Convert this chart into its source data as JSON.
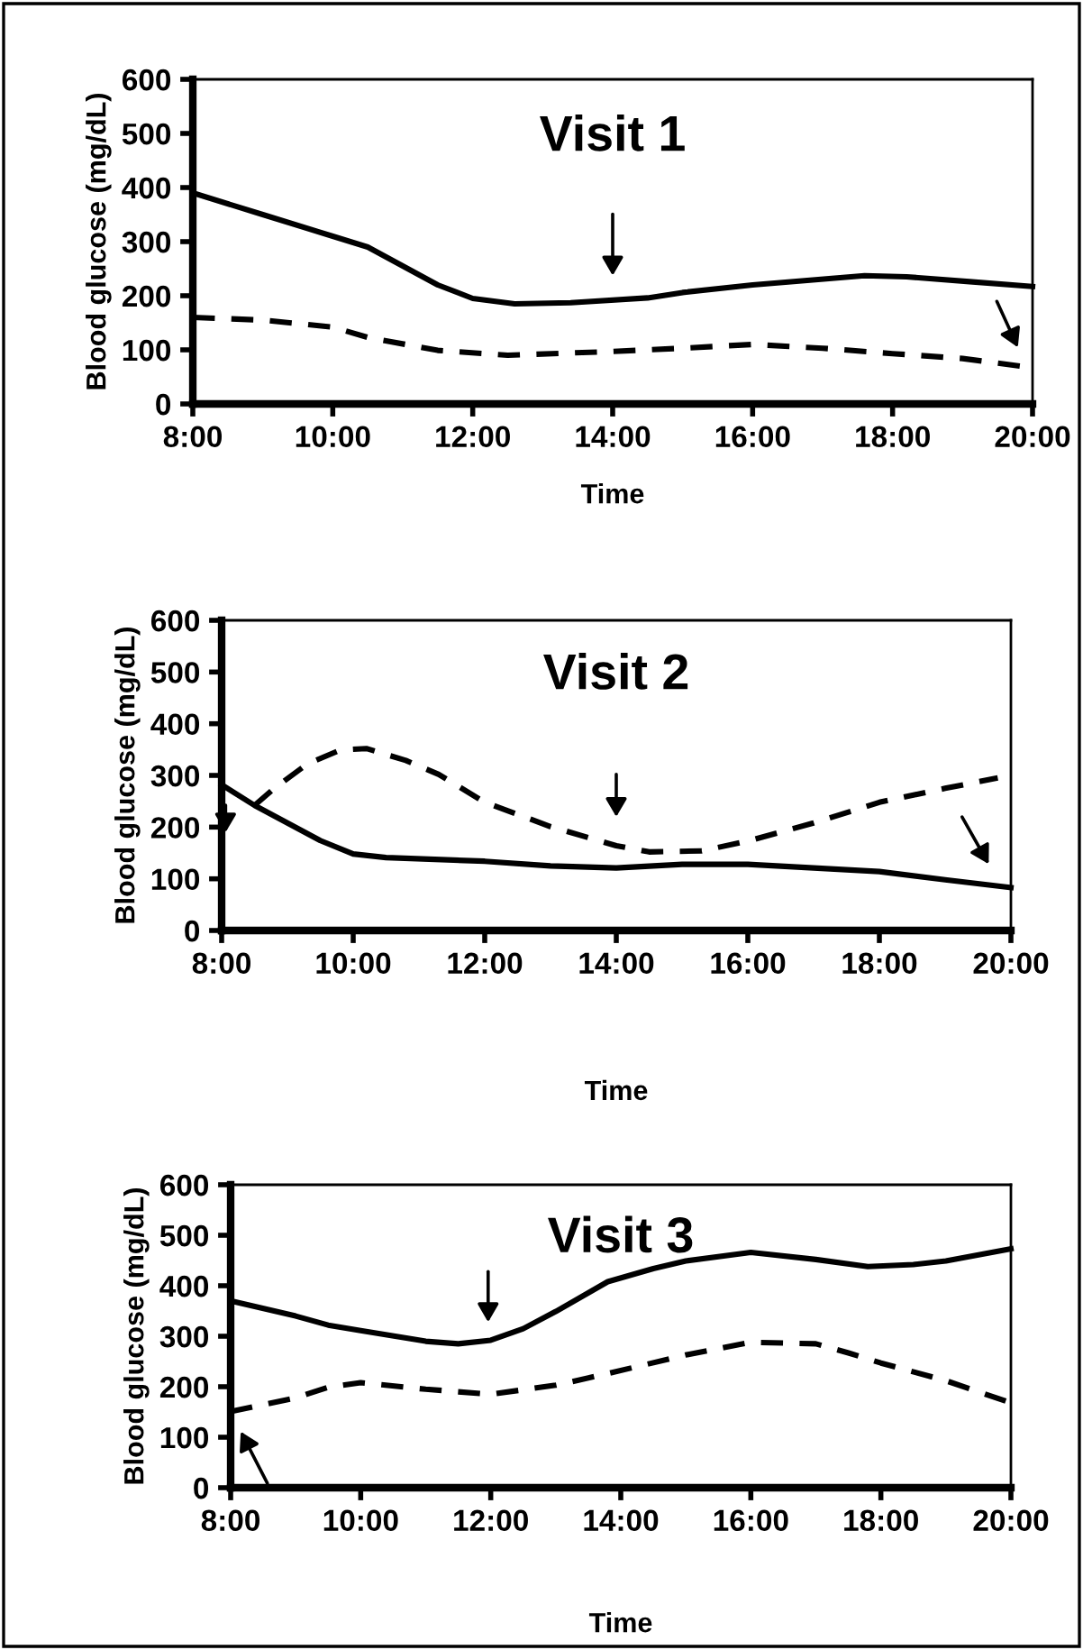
{
  "chart_data": [
    {
      "type": "line",
      "title": "Visit 1",
      "xlabel": "Time",
      "ylabel": "Blood glucose (mg/dL)",
      "xlim": [
        8,
        20
      ],
      "ylim": [
        0,
        600
      ],
      "xticks": [
        {
          "value": 8,
          "label": "8:00"
        },
        {
          "value": 10,
          "label": "10:00"
        },
        {
          "value": 12,
          "label": "12:00"
        },
        {
          "value": 14,
          "label": "14:00"
        },
        {
          "value": 16,
          "label": "16:00"
        },
        {
          "value": 18,
          "label": "18:00"
        },
        {
          "value": 20,
          "label": "20:00"
        }
      ],
      "yticks": [
        0,
        100,
        200,
        300,
        400,
        500,
        600
      ],
      "grid": false,
      "legend": false,
      "series": [
        {
          "color": "#000000",
          "line_style": "solid",
          "x": [
            8,
            9,
            10,
            10.5,
            11.5,
            12,
            12.6,
            13.4,
            14.5,
            15,
            16,
            17.6,
            18.2,
            19.1,
            20
          ],
          "values": [
            390,
            350,
            310,
            290,
            220,
            195,
            185,
            187,
            196,
            206,
            220,
            237,
            235,
            226,
            217
          ]
        },
        {
          "color": "#000000",
          "line_style": "dashed",
          "x": [
            8,
            9,
            10,
            10.5,
            11.5,
            12.5,
            14,
            15,
            16,
            17,
            18,
            19,
            20
          ],
          "values": [
            160,
            155,
            142,
            123,
            99,
            90,
            97,
            103,
            110,
            103,
            93,
            84,
            67
          ]
        }
      ]
    },
    {
      "type": "line",
      "title": "Visit 2",
      "xlabel": "Time",
      "ylabel": "Blood glucose (mg/dL)",
      "xlim": [
        8,
        20
      ],
      "ylim": [
        0,
        600
      ],
      "xticks": [
        {
          "value": 8,
          "label": "8:00"
        },
        {
          "value": 10,
          "label": "10:00"
        },
        {
          "value": 12,
          "label": "12:00"
        },
        {
          "value": 14,
          "label": "14:00"
        },
        {
          "value": 16,
          "label": "16:00"
        },
        {
          "value": 18,
          "label": "18:00"
        },
        {
          "value": 20,
          "label": "20:00"
        }
      ],
      "yticks": [
        0,
        100,
        200,
        300,
        400,
        500,
        600
      ],
      "grid": false,
      "legend": false,
      "series": [
        {
          "color": "#000000",
          "line_style": "solid",
          "x": [
            8,
            8.5,
            9,
            9.5,
            10,
            10.5,
            12,
            13,
            14,
            15,
            16,
            17,
            18,
            19,
            20
          ],
          "values": [
            282,
            242,
            208,
            174,
            148,
            141,
            134,
            125,
            121,
            128,
            128,
            121,
            114,
            98,
            83
          ]
        },
        {
          "color": "#000000",
          "line_style": "dashed",
          "x": [
            8.5,
            8.8,
            9.3,
            9.8,
            10.2,
            10.8,
            11.3,
            12,
            13,
            14,
            14.5,
            15.3,
            16,
            17,
            18,
            19,
            19.8
          ],
          "values": [
            242,
            275,
            322,
            349,
            352,
            329,
            302,
            248,
            201,
            164,
            152,
            154,
            173,
            208,
            248,
            275,
            295
          ]
        }
      ]
    },
    {
      "type": "line",
      "title": "Visit 3",
      "xlabel": "Time",
      "ylabel": "Blood glucose (mg/dL)",
      "xlim": [
        8,
        20
      ],
      "ylim": [
        0,
        600
      ],
      "xticks": [
        {
          "value": 8,
          "label": "8:00"
        },
        {
          "value": 10,
          "label": "10:00"
        },
        {
          "value": 12,
          "label": "12:00"
        },
        {
          "value": 14,
          "label": "14:00"
        },
        {
          "value": 16,
          "label": "16:00"
        },
        {
          "value": 18,
          "label": "18:00"
        },
        {
          "value": 20,
          "label": "20:00"
        }
      ],
      "yticks": [
        0,
        100,
        200,
        300,
        400,
        500,
        600
      ],
      "grid": false,
      "legend": false,
      "series": [
        {
          "color": "#000000",
          "line_style": "solid",
          "x": [
            8,
            9,
            9.5,
            10,
            11,
            11.5,
            12,
            12.5,
            13,
            13.8,
            14.5,
            15,
            16,
            17,
            17.8,
            18.5,
            19,
            20
          ],
          "values": [
            370,
            340,
            322,
            311,
            290,
            285,
            292,
            315,
            349,
            408,
            434,
            449,
            466,
            452,
            438,
            442,
            449,
            473
          ]
        },
        {
          "color": "#000000",
          "line_style": "dashed",
          "x": [
            8,
            9,
            9.5,
            10,
            11,
            12,
            13,
            13.8,
            15,
            16,
            17,
            17.5,
            18,
            19,
            20
          ],
          "values": [
            151,
            178,
            199,
            208,
            195,
            185,
            203,
            226,
            263,
            288,
            285,
            267,
            247,
            212,
            168
          ]
        }
      ]
    }
  ]
}
